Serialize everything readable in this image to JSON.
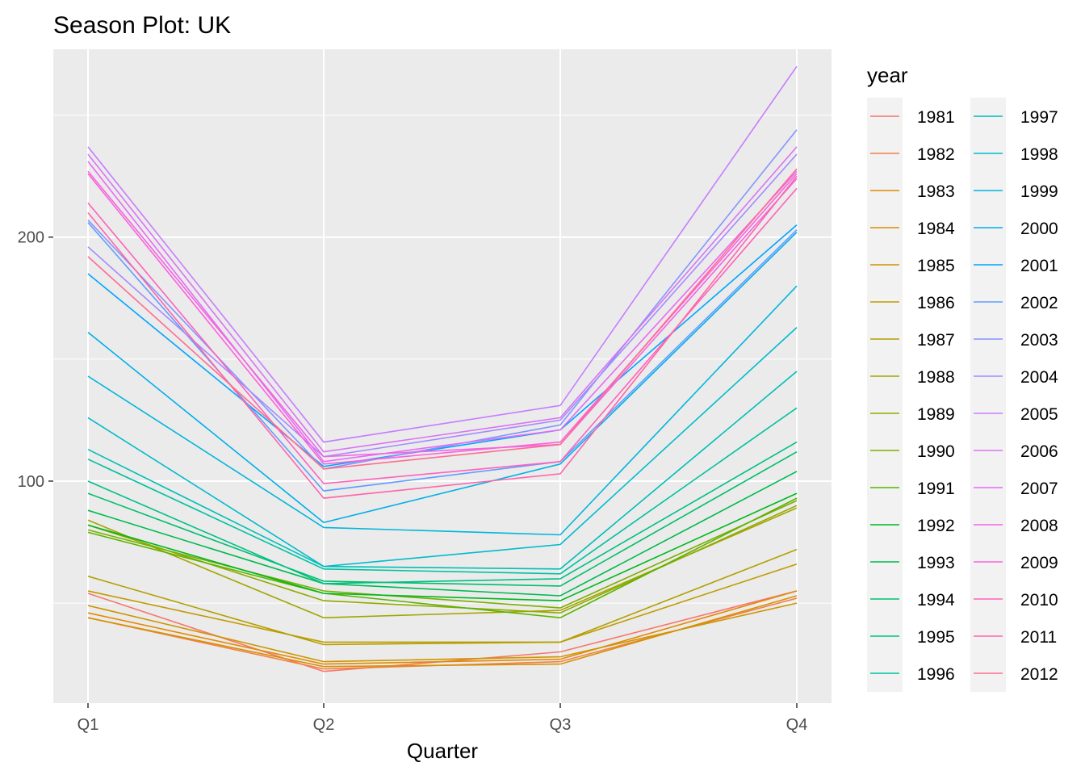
{
  "chart_data": {
    "type": "line",
    "title": "Season Plot: UK",
    "xlabel": "Quarter",
    "ylabel": "",
    "categories": [
      "Q1",
      "Q2",
      "Q3",
      "Q4"
    ],
    "ylim": [
      9,
      277
    ],
    "yticks": [
      100,
      200
    ],
    "grid": true,
    "legend": {
      "title": "year",
      "position": "right",
      "columns": 2
    },
    "series": [
      {
        "name": "1981",
        "color": "#F8766D",
        "values": [
          54,
          22,
          30,
          55
        ]
      },
      {
        "name": "1982",
        "color": "#F0804A",
        "values": [
          44,
          23,
          26,
          52
        ]
      },
      {
        "name": "1983",
        "color": "#E38900",
        "values": [
          46,
          25,
          27,
          55
        ]
      },
      {
        "name": "1984",
        "color": "#D89000",
        "values": [
          44,
          24,
          25,
          53
        ]
      },
      {
        "name": "1985",
        "color": "#CD9600",
        "values": [
          49,
          26,
          28,
          50
        ]
      },
      {
        "name": "1986",
        "color": "#C09B00",
        "values": [
          55,
          34,
          34,
          66
        ]
      },
      {
        "name": "1987",
        "color": "#B2A000",
        "values": [
          61,
          33,
          34,
          72
        ]
      },
      {
        "name": "1988",
        "color": "#A3A500",
        "values": [
          84,
          44,
          47,
          89
        ]
      },
      {
        "name": "1989",
        "color": "#93AA00",
        "values": [
          82,
          51,
          46,
          90
        ]
      },
      {
        "name": "1990",
        "color": "#7CAE00",
        "values": [
          80,
          55,
          48,
          92
        ]
      },
      {
        "name": "1991",
        "color": "#5BB300",
        "values": [
          79,
          54,
          44,
          93
        ]
      },
      {
        "name": "1992",
        "color": "#00B81F",
        "values": [
          82,
          54,
          51,
          95
        ]
      },
      {
        "name": "1993",
        "color": "#00BB4E",
        "values": [
          88,
          58,
          53,
          104
        ]
      },
      {
        "name": "1994",
        "color": "#00BE6C",
        "values": [
          95,
          59,
          57,
          112
        ]
      },
      {
        "name": "1995",
        "color": "#00C087",
        "values": [
          100,
          58,
          60,
          116
        ]
      },
      {
        "name": "1996",
        "color": "#00C19F",
        "values": [
          109,
          64,
          62,
          130
        ]
      },
      {
        "name": "1997",
        "color": "#00BFB6",
        "values": [
          113,
          65,
          64,
          145
        ]
      },
      {
        "name": "1998",
        "color": "#00BCCB",
        "values": [
          126,
          65,
          74,
          163
        ]
      },
      {
        "name": "1999",
        "color": "#00B6DC",
        "values": [
          143,
          81,
          78,
          180
        ]
      },
      {
        "name": "2000",
        "color": "#00AFEB",
        "values": [
          161,
          83,
          107,
          202
        ]
      },
      {
        "name": "2001",
        "color": "#00A5FF",
        "values": [
          185,
          106,
          121,
          205
        ]
      },
      {
        "name": "2002",
        "color": "#619CFF",
        "values": [
          206,
          96,
          108,
          203
        ]
      },
      {
        "name": "2003",
        "color": "#8494FF",
        "values": [
          207,
          105,
          123,
          244
        ]
      },
      {
        "name": "2004",
        "color": "#A58AFF",
        "values": [
          196,
          110,
          125,
          234
        ]
      },
      {
        "name": "2005",
        "color": "#C77CFF",
        "values": [
          237,
          116,
          131,
          270
        ]
      },
      {
        "name": "2006",
        "color": "#D974F2",
        "values": [
          234,
          112,
          126,
          237
        ]
      },
      {
        "name": "2007",
        "color": "#E76BF3",
        "values": [
          231,
          108,
          121,
          227
        ]
      },
      {
        "name": "2008",
        "color": "#F265E3",
        "values": [
          227,
          110,
          115,
          224
        ]
      },
      {
        "name": "2009",
        "color": "#FA62D8",
        "values": [
          226,
          107,
          116,
          226
        ]
      },
      {
        "name": "2010",
        "color": "#FF62BC",
        "values": [
          214,
          99,
          108,
          220
        ]
      },
      {
        "name": "2011",
        "color": "#FF65AA",
        "values": [
          210,
          93,
          103,
          225
        ]
      },
      {
        "name": "2012",
        "color": "#FF6C91",
        "values": [
          192,
          105,
          115,
          228
        ]
      }
    ]
  }
}
